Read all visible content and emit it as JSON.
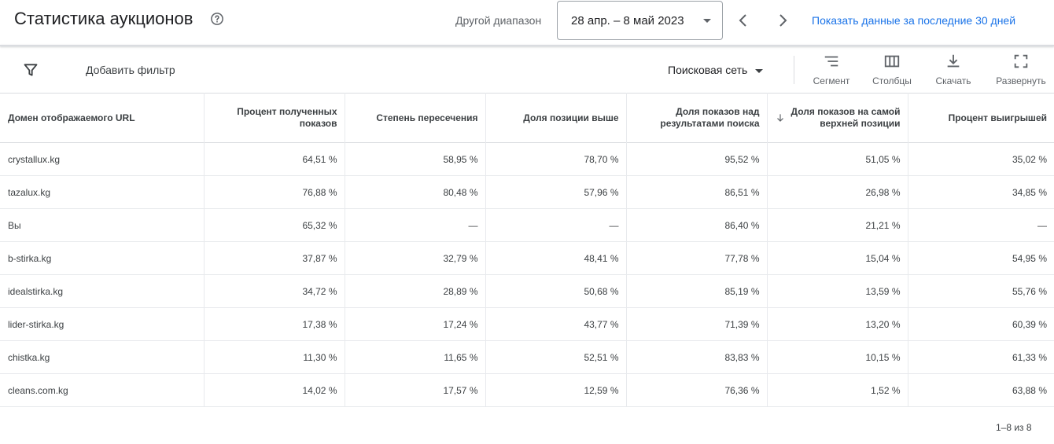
{
  "header": {
    "title": "Статистика аукционов",
    "range_label": "Другой диапазон",
    "date_range": "28 апр. – 8 май 2023",
    "last30_link": "Показать данные за последние 30 дней"
  },
  "toolbar": {
    "add_filter": "Добавить фильтр",
    "network": "Поисковая сеть",
    "segment": "Сегмент",
    "columns": "Столбцы",
    "download": "Скачать",
    "expand": "Развернуть"
  },
  "table": {
    "headers": [
      "Домен отображаемого URL",
      "Процент полученных показов",
      "Степень пересечения",
      "Доля позиции выше",
      "Доля показов над результатами поиска",
      "Доля показов на самой верхней позиции",
      "Процент выигрышей"
    ],
    "rows": [
      [
        "crystallux.kg",
        "64,51 %",
        "58,95 %",
        "78,70 %",
        "95,52 %",
        "51,05 %",
        "35,02 %"
      ],
      [
        "tazalux.kg",
        "76,88 %",
        "80,48 %",
        "57,96 %",
        "86,51 %",
        "26,98 %",
        "34,85 %"
      ],
      [
        "Вы",
        "65,32 %",
        "—",
        "—",
        "86,40 %",
        "21,21 %",
        "—"
      ],
      [
        "b-stirka.kg",
        "37,87 %",
        "32,79 %",
        "48,41 %",
        "77,78 %",
        "15,04 %",
        "54,95 %"
      ],
      [
        "idealstirka.kg",
        "34,72 %",
        "28,89 %",
        "50,68 %",
        "85,19 %",
        "13,59 %",
        "55,76 %"
      ],
      [
        "lider-stirka.kg",
        "17,38 %",
        "17,24 %",
        "43,77 %",
        "71,39 %",
        "13,20 %",
        "60,39 %"
      ],
      [
        "chistka.kg",
        "11,30 %",
        "11,65 %",
        "52,51 %",
        "83,83 %",
        "10,15 %",
        "61,33 %"
      ],
      [
        "cleans.com.kg",
        "14,02 %",
        "17,57 %",
        "12,59 %",
        "76,36 %",
        "1,52 %",
        "63,88 %"
      ]
    ]
  },
  "pagination": "1–8 из 8",
  "colors": {
    "link": "#1a73e8",
    "text": "#202124",
    "muted": "#5f6368",
    "border": "#dadce0"
  }
}
